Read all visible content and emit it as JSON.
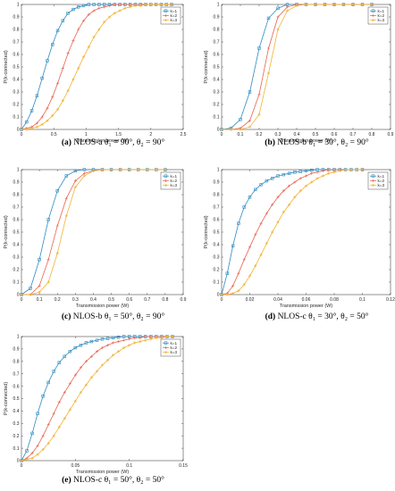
{
  "series_names": [
    "k=1",
    "k=2",
    "k=3"
  ],
  "series_colors": [
    "#2e8bc0",
    "#e8634f",
    "#f2b233"
  ],
  "chart_data": [
    {
      "type": "line",
      "xlabel": "Transmission power (W)",
      "ylabel": "P(k-connected)",
      "xlim": [
        0,
        2.5
      ],
      "ylim": [
        0,
        1
      ],
      "xticks": [
        0,
        0.5,
        1,
        1.5,
        2,
        2.5
      ],
      "xtick_labels": [
        "0",
        "0.5",
        "1",
        "1.5",
        "2",
        "2.5"
      ],
      "yticks": [
        0,
        0.1,
        0.2,
        0.3,
        0.4,
        0.5,
        0.6,
        0.7,
        0.8,
        0.9,
        1
      ],
      "ytick_labels": [
        "0",
        "0.1",
        "0.2",
        "0.3",
        "0.4",
        "0.5",
        "0.6",
        "0.7",
        "0.8",
        "0.9",
        "1"
      ],
      "x": [
        0,
        0.08,
        0.16,
        0.24,
        0.32,
        0.4,
        0.48,
        0.56,
        0.64,
        0.72,
        0.8,
        0.88,
        0.96,
        1.04,
        1.12,
        1.2,
        1.28,
        1.36,
        1.44,
        1.52,
        1.6,
        1.68,
        1.76,
        1.84,
        1.92,
        2.0,
        2.08,
        2.16,
        2.24,
        2.32
      ],
      "series": [
        {
          "name": "k=1",
          "values": [
            0,
            0.06,
            0.15,
            0.27,
            0.41,
            0.55,
            0.68,
            0.79,
            0.87,
            0.93,
            0.96,
            0.98,
            0.99,
            1,
            1,
            1,
            1,
            1,
            1,
            1,
            1,
            1,
            1,
            1,
            1,
            1,
            1,
            1,
            1,
            1
          ]
        },
        {
          "name": "k=2",
          "values": [
            0,
            0.01,
            0.02,
            0.05,
            0.1,
            0.17,
            0.26,
            0.37,
            0.49,
            0.61,
            0.71,
            0.8,
            0.87,
            0.92,
            0.95,
            0.97,
            0.98,
            0.99,
            1,
            1,
            1,
            1,
            1,
            1,
            1,
            1,
            1,
            1,
            1,
            1
          ]
        },
        {
          "name": "k=3",
          "values": [
            0,
            0,
            0.01,
            0.02,
            0.04,
            0.07,
            0.11,
            0.16,
            0.23,
            0.31,
            0.4,
            0.49,
            0.58,
            0.66,
            0.74,
            0.8,
            0.86,
            0.9,
            0.93,
            0.95,
            0.97,
            0.98,
            0.99,
            0.99,
            1,
            1,
            1,
            1,
            1,
            1
          ]
        }
      ],
      "caption_label": "(a)",
      "caption_text": "NLOS-a θ₁ = 90°, θ₂ = 90°"
    },
    {
      "type": "line",
      "xlabel": "Transmission power (W)",
      "ylabel": "P(k-connected)",
      "xlim": [
        0,
        0.9
      ],
      "ylim": [
        0,
        1
      ],
      "xticks": [
        0,
        0.1,
        0.2,
        0.3,
        0.4,
        0.5,
        0.6,
        0.7,
        0.8,
        0.9
      ],
      "xtick_labels": [
        "0",
        "0.1",
        "0.2",
        "0.3",
        "0.4",
        "0.5",
        "0.6",
        "0.7",
        "0.8",
        "0.9"
      ],
      "yticks": [
        0,
        0.1,
        0.2,
        0.3,
        0.4,
        0.5,
        0.6,
        0.7,
        0.8,
        0.9,
        1
      ],
      "ytick_labels": [
        "0",
        "0.1",
        "0.2",
        "0.3",
        "0.4",
        "0.5",
        "0.6",
        "0.7",
        "0.8",
        "0.9",
        "1"
      ],
      "x": [
        0,
        0.05,
        0.1,
        0.15,
        0.2,
        0.25,
        0.3,
        0.35,
        0.4,
        0.45,
        0.5,
        0.55,
        0.6,
        0.65,
        0.7,
        0.75,
        0.8
      ],
      "series": [
        {
          "name": "k=1",
          "values": [
            0,
            0.01,
            0.08,
            0.3,
            0.65,
            0.89,
            0.97,
            1,
            1,
            1,
            1,
            1,
            1,
            1,
            1,
            1,
            1
          ]
        },
        {
          "name": "k=2",
          "values": [
            0,
            0,
            0.01,
            0.07,
            0.28,
            0.65,
            0.9,
            0.98,
            1,
            1,
            1,
            1,
            1,
            1,
            1,
            1,
            1
          ]
        },
        {
          "name": "k=3",
          "values": [
            0,
            0,
            0,
            0.02,
            0.12,
            0.45,
            0.8,
            0.95,
            0.99,
            1,
            1,
            1,
            1,
            1,
            1,
            1,
            1
          ]
        }
      ],
      "caption_label": "(b)",
      "caption_text": "NLOS-b θ₁ = 30°, θ₂ = 90°"
    },
    {
      "type": "line",
      "xlabel": "Transmission power (W)",
      "ylabel": "P(k-connected)",
      "xlim": [
        0,
        0.9
      ],
      "ylim": [
        0,
        1
      ],
      "xticks": [
        0,
        0.1,
        0.2,
        0.3,
        0.4,
        0.5,
        0.6,
        0.7,
        0.8,
        0.9
      ],
      "xtick_labels": [
        "0",
        "0.1",
        "0.2",
        "0.3",
        "0.4",
        "0.5",
        "0.6",
        "0.7",
        "0.8",
        "0.9"
      ],
      "yticks": [
        0,
        0.1,
        0.2,
        0.3,
        0.4,
        0.5,
        0.6,
        0.7,
        0.8,
        0.9,
        1
      ],
      "ytick_labels": [
        "0",
        "0.1",
        "0.2",
        "0.3",
        "0.4",
        "0.5",
        "0.6",
        "0.7",
        "0.8",
        "0.9",
        "1"
      ],
      "x": [
        0,
        0.05,
        0.1,
        0.15,
        0.2,
        0.25,
        0.3,
        0.35,
        0.4,
        0.45,
        0.5,
        0.55,
        0.6,
        0.65,
        0.7,
        0.75,
        0.8
      ],
      "series": [
        {
          "name": "k=1",
          "values": [
            0,
            0.05,
            0.28,
            0.6,
            0.83,
            0.95,
            0.99,
            1,
            1,
            1,
            1,
            1,
            1,
            1,
            1,
            1,
            1
          ]
        },
        {
          "name": "k=2",
          "values": [
            0,
            0,
            0.07,
            0.28,
            0.55,
            0.77,
            0.91,
            0.97,
            0.99,
            1,
            1,
            1,
            1,
            1,
            1,
            1,
            1
          ]
        },
        {
          "name": "k=3",
          "values": [
            0,
            0,
            0.02,
            0.1,
            0.33,
            0.63,
            0.86,
            0.95,
            0.99,
            1,
            1,
            1,
            1,
            1,
            1,
            1,
            1
          ]
        }
      ],
      "caption_label": "(c)",
      "caption_text": "NLOS-b θ₁ = 50°, θ₂ = 90°"
    },
    {
      "type": "line",
      "xlabel": "Transmission power (W)",
      "ylabel": "P(k-connected)",
      "xlim": [
        0,
        0.12
      ],
      "ylim": [
        0,
        1
      ],
      "xticks": [
        0,
        0.02,
        0.04,
        0.06,
        0.08,
        0.1,
        0.12
      ],
      "xtick_labels": [
        "0",
        "0.02",
        "0.04",
        "0.06",
        "0.08",
        "0.1",
        "0.12"
      ],
      "yticks": [
        0,
        0.1,
        0.2,
        0.3,
        0.4,
        0.5,
        0.6,
        0.7,
        0.8,
        0.9,
        1
      ],
      "ytick_labels": [
        "0",
        "0.1",
        "0.2",
        "0.3",
        "0.4",
        "0.5",
        "0.6",
        "0.7",
        "0.8",
        "0.9",
        "1"
      ],
      "x": [
        0,
        0.004,
        0.008,
        0.012,
        0.016,
        0.02,
        0.024,
        0.028,
        0.032,
        0.036,
        0.04,
        0.044,
        0.048,
        0.052,
        0.056,
        0.06,
        0.064,
        0.068,
        0.072,
        0.076,
        0.08,
        0.084,
        0.088,
        0.092,
        0.096,
        0.1
      ],
      "series": [
        {
          "name": "k=1",
          "values": [
            0,
            0.17,
            0.39,
            0.57,
            0.7,
            0.78,
            0.84,
            0.88,
            0.91,
            0.93,
            0.95,
            0.96,
            0.97,
            0.98,
            0.985,
            0.99,
            0.995,
            1,
            1,
            1,
            1,
            1,
            1,
            1,
            1,
            1
          ]
        },
        {
          "name": "k=2",
          "values": [
            0,
            0.01,
            0.07,
            0.17,
            0.28,
            0.38,
            0.48,
            0.57,
            0.65,
            0.72,
            0.78,
            0.83,
            0.87,
            0.9,
            0.93,
            0.95,
            0.97,
            0.98,
            0.99,
            1,
            1,
            1,
            1,
            1,
            1,
            1
          ]
        },
        {
          "name": "k=3",
          "values": [
            0,
            0,
            0.01,
            0.03,
            0.08,
            0.15,
            0.23,
            0.32,
            0.41,
            0.5,
            0.58,
            0.66,
            0.72,
            0.78,
            0.83,
            0.87,
            0.9,
            0.93,
            0.95,
            0.97,
            0.98,
            0.99,
            1,
            1,
            1,
            1
          ]
        }
      ],
      "caption_label": "(d)",
      "caption_text": "NLOS-c θ₁ = 30°, θ₂ = 50°"
    },
    {
      "type": "line",
      "xlabel": "Transmission power (W)",
      "ylabel": "P(k-connected)",
      "xlim": [
        0,
        0.15
      ],
      "ylim": [
        0,
        1
      ],
      "xticks": [
        0,
        0.05,
        0.1,
        0.15
      ],
      "xtick_labels": [
        "0",
        "0.05",
        "0.1",
        "0.15"
      ],
      "yticks": [
        0,
        0.1,
        0.2,
        0.3,
        0.4,
        0.5,
        0.6,
        0.7,
        0.8,
        0.9,
        1
      ],
      "ytick_labels": [
        "0",
        "0.1",
        "0.2",
        "0.3",
        "0.4",
        "0.5",
        "0.6",
        "0.7",
        "0.8",
        "0.9",
        "1"
      ],
      "x": [
        0,
        0.005,
        0.01,
        0.015,
        0.02,
        0.025,
        0.03,
        0.035,
        0.04,
        0.045,
        0.05,
        0.055,
        0.06,
        0.065,
        0.07,
        0.075,
        0.08,
        0.085,
        0.09,
        0.095,
        0.1,
        0.105,
        0.11,
        0.115,
        0.12,
        0.125,
        0.13,
        0.135,
        0.14
      ],
      "series": [
        {
          "name": "k=1",
          "values": [
            0,
            0.08,
            0.22,
            0.38,
            0.52,
            0.63,
            0.72,
            0.79,
            0.84,
            0.88,
            0.91,
            0.93,
            0.95,
            0.96,
            0.97,
            0.98,
            0.985,
            0.99,
            0.995,
            1,
            1,
            1,
            1,
            1,
            1,
            1,
            1,
            1,
            1
          ]
        },
        {
          "name": "k=2",
          "values": [
            0,
            0.02,
            0.06,
            0.12,
            0.2,
            0.29,
            0.38,
            0.47,
            0.55,
            0.62,
            0.69,
            0.75,
            0.8,
            0.84,
            0.88,
            0.91,
            0.93,
            0.95,
            0.96,
            0.97,
            0.98,
            0.99,
            0.99,
            1,
            1,
            1,
            1,
            1,
            1
          ]
        },
        {
          "name": "k=3",
          "values": [
            0,
            0.01,
            0.02,
            0.05,
            0.09,
            0.14,
            0.2,
            0.27,
            0.34,
            0.41,
            0.48,
            0.55,
            0.61,
            0.67,
            0.72,
            0.77,
            0.81,
            0.85,
            0.88,
            0.91,
            0.93,
            0.95,
            0.96,
            0.97,
            0.98,
            0.99,
            0.99,
            1,
            1
          ]
        }
      ],
      "caption_label": "(e)",
      "caption_text": "NLOS-c θ₁ = 50°, θ₂ = 50°"
    }
  ]
}
